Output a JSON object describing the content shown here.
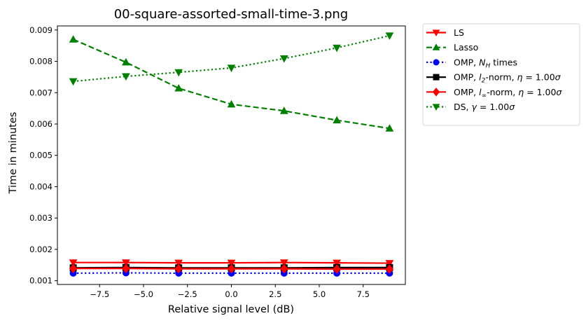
{
  "chart_data": {
    "type": "line",
    "title": "00-square-assorted-small-time-3.png",
    "xlabel": "Relative signal level (dB)",
    "ylabel": "Time in minutes",
    "xlim": [
      -9.9,
      9.9
    ],
    "ylim": [
      0.00088,
      0.00913
    ],
    "xticks": [
      -7.5,
      -5.0,
      -2.5,
      0.0,
      2.5,
      5.0,
      7.5
    ],
    "xtick_labels": [
      "−7.5",
      "−5.0",
      "−2.5",
      "0.0",
      "2.5",
      "5.0",
      "7.5"
    ],
    "yticks": [
      0.001,
      0.002,
      0.003,
      0.004,
      0.005,
      0.006,
      0.007,
      0.008,
      0.009
    ],
    "ytick_labels": [
      "0.001",
      "0.002",
      "0.003",
      "0.004",
      "0.005",
      "0.006",
      "0.007",
      "0.008",
      "0.009"
    ],
    "x": [
      -9,
      -6,
      -3,
      0,
      3,
      6,
      9
    ],
    "legend_position": "outside-upper-right",
    "grid": false,
    "series": [
      {
        "name": "LS",
        "color": "#ff0000",
        "linestyle": "solid",
        "marker": "triangle-down",
        "values": [
          0.00158,
          0.00158,
          0.00157,
          0.00157,
          0.00158,
          0.00157,
          0.00156
        ]
      },
      {
        "name": "Lasso",
        "color": "#008000",
        "linestyle": "dashed",
        "marker": "triangle-up",
        "values": [
          0.0087,
          0.00797,
          0.00714,
          0.00663,
          0.00642,
          0.00612,
          0.00586
        ]
      },
      {
        "name": "OMP, N_H times",
        "color": "#0000ff",
        "linestyle": "dotted",
        "marker": "circle",
        "values": [
          0.00124,
          0.00125,
          0.00124,
          0.00124,
          0.00124,
          0.00124,
          0.00124
        ]
      },
      {
        "name": "OMP, l_2-norm, η = 1.00σ",
        "color": "#000000",
        "linestyle": "solid",
        "marker": "square",
        "values": [
          0.00141,
          0.00142,
          0.00141,
          0.00141,
          0.00141,
          0.00142,
          0.00142
        ]
      },
      {
        "name": "OMP, l_∞-norm, η = 1.00σ",
        "color": "#ff0000",
        "linestyle": "solid",
        "marker": "diamond",
        "values": [
          0.00139,
          0.00139,
          0.00138,
          0.00138,
          0.00138,
          0.00137,
          0.00137
        ]
      },
      {
        "name": "DS, γ = 1.00σ",
        "color": "#008000",
        "linestyle": "dotted",
        "marker": "triangle-down",
        "values": [
          0.00736,
          0.00752,
          0.00765,
          0.00779,
          0.00809,
          0.00843,
          0.00882
        ]
      }
    ],
    "legend": [
      {
        "main": "LS",
        "parts": []
      },
      {
        "main": "Lasso",
        "parts": []
      },
      {
        "main": "OMP, ",
        "sym": "N",
        "sub": "H",
        "rest": " times"
      },
      {
        "main": "OMP, ",
        "sym": "l",
        "sub": "2",
        "rest": "-norm, ",
        "sym2": "η",
        "rest2": " = 1.00",
        "sym3": "σ"
      },
      {
        "main": "OMP, ",
        "sym": "l",
        "sub": "∞",
        "rest": "-norm, ",
        "sym2": "η",
        "rest2": " = 1.00",
        "sym3": "σ"
      },
      {
        "main": "DS, ",
        "sym": "γ",
        "rest": " = 1.00",
        "sym3": "σ"
      }
    ]
  }
}
